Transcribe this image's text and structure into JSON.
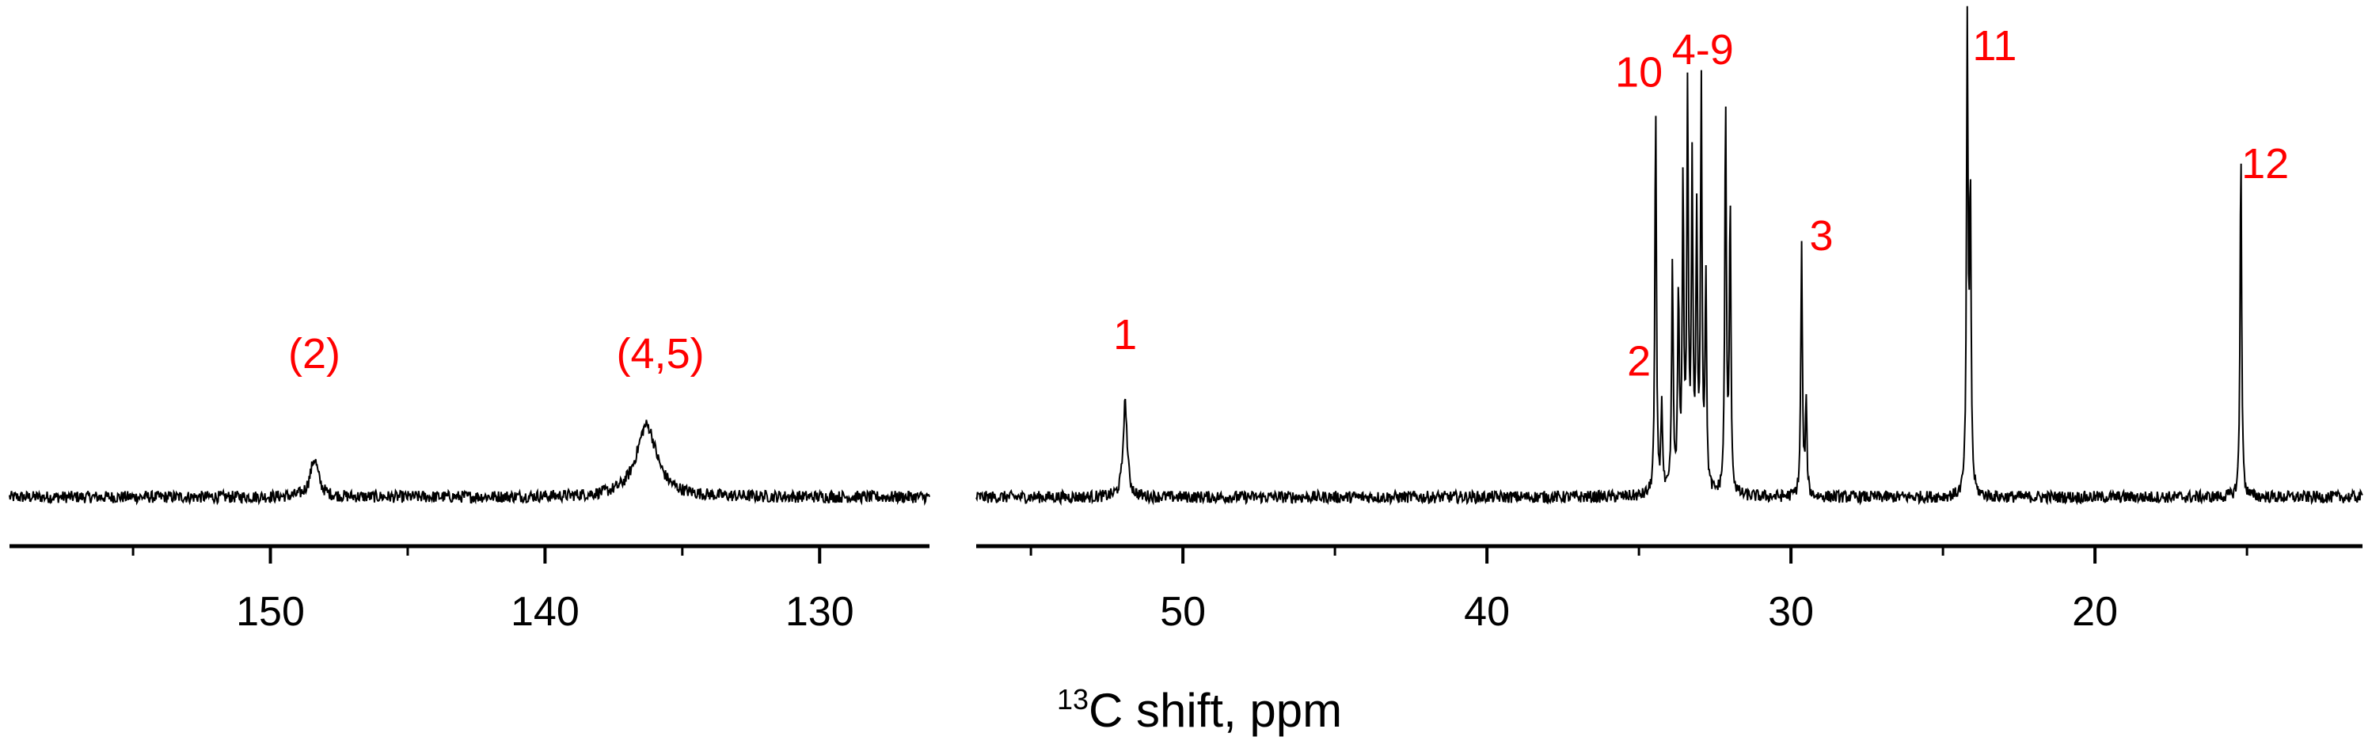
{
  "chart_data": {
    "type": "line",
    "xlabel": {
      "superscript": "13",
      "text": "C shift, ppm"
    },
    "ylabel": "",
    "axis_reversed": true,
    "line_color": "#000000",
    "label_color": "#ff0000",
    "panels": [
      {
        "name": "left",
        "xlim": [
          159.5,
          126.0
        ],
        "xticks": [
          150,
          140,
          130
        ],
        "minor_ticks": [
          155,
          145,
          135
        ],
        "baseline": 0,
        "noise": 0.8,
        "peaks": [
          {
            "x": 148.4,
            "height": 5,
            "width": 0.18,
            "label": "(2)",
            "label_x": 148.4,
            "label_y": 17
          },
          {
            "x": 136.3,
            "height": 9.5,
            "width": 0.45,
            "label": "(4,5)",
            "label_x": 135.8,
            "label_y": 17
          }
        ]
      },
      {
        "name": "right",
        "xlim": [
          56.8,
          11.2
        ],
        "xticks": [
          50,
          40,
          30,
          20
        ],
        "minor_ticks": [
          55,
          45,
          35,
          25,
          15
        ],
        "baseline": 0,
        "noise": 0.8,
        "peaks": [
          {
            "x": 51.9,
            "height": 12.5,
            "width": 0.08,
            "label": "1",
            "label_x": 51.9,
            "label_y": 19.5
          },
          {
            "x": 34.45,
            "height": 51,
            "width": 0.03,
            "label": "10",
            "label_x": 35.0,
            "label_y": 54
          },
          {
            "x": 34.25,
            "height": 12,
            "width": 0.03,
            "label": "2",
            "label_x": 35.0,
            "label_y": 16
          },
          {
            "x": 33.9,
            "height": 30,
            "width": 0.03,
            "label": "",
            "label_x": 0,
            "label_y": 0
          },
          {
            "x": 33.7,
            "height": 26,
            "width": 0.03,
            "label": "",
            "label_x": 0,
            "label_y": 0
          },
          {
            "x": 33.55,
            "height": 40,
            "width": 0.03,
            "label": "",
            "label_x": 0,
            "label_y": 0
          },
          {
            "x": 33.4,
            "height": 52,
            "width": 0.03,
            "label": "",
            "label_x": 0,
            "label_y": 0
          },
          {
            "x": 33.25,
            "height": 42,
            "width": 0.03,
            "label": "",
            "label_x": 0,
            "label_y": 0
          },
          {
            "x": 33.1,
            "height": 35,
            "width": 0.03,
            "label": "",
            "label_x": 0,
            "label_y": 0
          },
          {
            "x": 32.95,
            "height": 53,
            "width": 0.03,
            "label": "4-9",
            "label_x": 32.9,
            "label_y": 57
          },
          {
            "x": 32.8,
            "height": 28,
            "width": 0.03,
            "label": "",
            "label_x": 0,
            "label_y": 0
          },
          {
            "x": 32.15,
            "height": 52,
            "width": 0.03,
            "label": "",
            "label_x": 0,
            "label_y": 0
          },
          {
            "x": 32.0,
            "height": 38,
            "width": 0.03,
            "label": "",
            "label_x": 0,
            "label_y": 0
          },
          {
            "x": 29.65,
            "height": 33,
            "width": 0.03,
            "label": "3",
            "label_x": 29.0,
            "label_y": 32.5
          },
          {
            "x": 29.5,
            "height": 12,
            "width": 0.03,
            "label": "",
            "label_x": 0,
            "label_y": 0
          },
          {
            "x": 24.2,
            "height": 61,
            "width": 0.03,
            "label": "11",
            "label_x": 23.3,
            "label_y": 57.5
          },
          {
            "x": 24.1,
            "height": 40,
            "width": 0.03,
            "label": "",
            "label_x": 0,
            "label_y": 0
          },
          {
            "x": 15.2,
            "height": 46.5,
            "width": 0.03,
            "label": "12",
            "label_x": 14.4,
            "label_y": 42
          }
        ]
      }
    ]
  }
}
